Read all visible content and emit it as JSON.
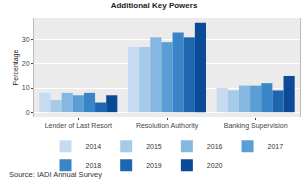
{
  "chart_data": {
    "type": "bar",
    "title": "Additional Key Powers",
    "ylabel": "Percentage",
    "categories": [
      "Lender of Last Resort",
      "Resolution Authority",
      "Banking Supervision"
    ],
    "series": [
      {
        "name": "2014",
        "color": "#c6dbef",
        "values": [
          8,
          27,
          10
        ]
      },
      {
        "name": "2015",
        "color": "#a6cbe8",
        "values": [
          5,
          27,
          9
        ]
      },
      {
        "name": "2016",
        "color": "#85b7e0",
        "values": [
          8,
          31,
          11
        ]
      },
      {
        "name": "2017",
        "color": "#5a9ed6",
        "values": [
          7,
          29,
          11
        ]
      },
      {
        "name": "2018",
        "color": "#3a84c8",
        "values": [
          8,
          33,
          12
        ]
      },
      {
        "name": "2019",
        "color": "#1f66b0",
        "values": [
          4,
          31,
          9
        ]
      },
      {
        "name": "2020",
        "color": "#0b4a96",
        "values": [
          7,
          37,
          15
        ]
      }
    ],
    "ylim": [
      -2,
      39
    ],
    "yticks": [
      0,
      10,
      20,
      30
    ],
    "grid": true,
    "legend": "bottom",
    "annotations": [
      "Source: IADI Annual Survey"
    ]
  }
}
